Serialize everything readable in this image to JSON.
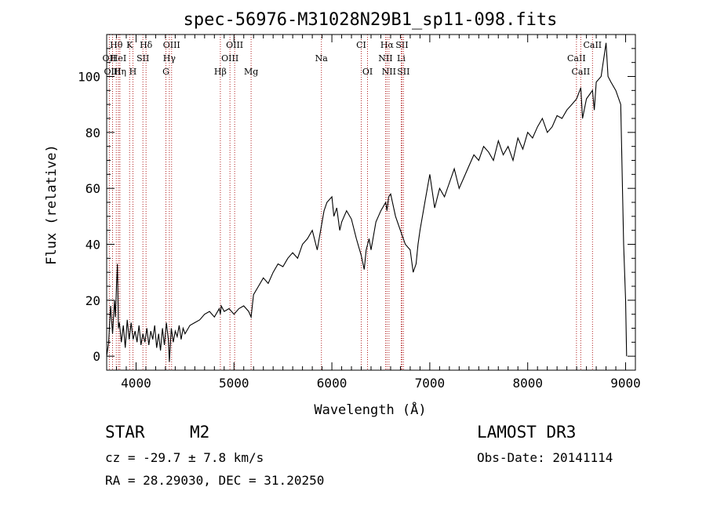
{
  "chart_data": {
    "type": "line",
    "title": "spec-56976-M31028N29B1_sp11-098.fits",
    "xlabel": "Wavelength (Å)",
    "ylabel": "Flux (relative)",
    "xlim": [
      3700,
      9100
    ],
    "ylim": [
      -5,
      115
    ],
    "xticks": [
      4000,
      5000,
      6000,
      7000,
      8000,
      9000
    ],
    "yticks": [
      0,
      20,
      40,
      60,
      80,
      100
    ],
    "series": [
      {
        "name": "flux",
        "x": [
          3700,
          3720,
          3740,
          3760,
          3780,
          3790,
          3800,
          3810,
          3820,
          3830,
          3850,
          3870,
          3890,
          3910,
          3930,
          3950,
          3970,
          3990,
          4010,
          4030,
          4050,
          4070,
          4090,
          4110,
          4130,
          4150,
          4170,
          4190,
          4210,
          4230,
          4250,
          4270,
          4290,
          4310,
          4330,
          4340,
          4360,
          4380,
          4400,
          4420,
          4440,
          4460,
          4480,
          4500,
          4550,
          4600,
          4650,
          4700,
          4750,
          4800,
          4850,
          4861,
          4870,
          4900,
          4950,
          5000,
          5050,
          5100,
          5150,
          5175,
          5200,
          5250,
          5300,
          5350,
          5400,
          5450,
          5500,
          5550,
          5600,
          5650,
          5700,
          5750,
          5800,
          5850,
          5880,
          5900,
          5920,
          5950,
          6000,
          6020,
          6050,
          6080,
          6100,
          6150,
          6200,
          6250,
          6300,
          6330,
          6350,
          6380,
          6400,
          6450,
          6500,
          6550,
          6563,
          6580,
          6600,
          6650,
          6700,
          6750,
          6800,
          6830,
          6860,
          6880,
          6900,
          6950,
          7000,
          7050,
          7100,
          7150,
          7200,
          7250,
          7300,
          7350,
          7400,
          7450,
          7500,
          7550,
          7600,
          7650,
          7700,
          7750,
          7800,
          7850,
          7900,
          7950,
          8000,
          8050,
          8100,
          8150,
          8200,
          8250,
          8300,
          8350,
          8400,
          8450,
          8500,
          8542,
          8560,
          8600,
          8662,
          8680,
          8700,
          8750,
          8800,
          8820,
          8850,
          8900,
          8950,
          8980,
          9000,
          9010
        ],
        "values": [
          0,
          5,
          18,
          8,
          20,
          14,
          25,
          33,
          10,
          12,
          5,
          11,
          3,
          13,
          6,
          12,
          6,
          9,
          5,
          11,
          4,
          8,
          5,
          10,
          4,
          9,
          6,
          11,
          3,
          8,
          2,
          10,
          4,
          12,
          6,
          -2,
          10,
          5,
          9,
          7,
          11,
          6,
          10,
          8,
          11,
          12,
          13,
          15,
          16,
          14,
          17,
          15,
          18,
          16,
          17,
          15,
          17,
          18,
          16,
          14,
          22,
          25,
          28,
          26,
          30,
          33,
          32,
          35,
          37,
          35,
          40,
          42,
          45,
          38,
          44,
          48,
          52,
          55,
          57,
          50,
          53,
          45,
          48,
          52,
          49,
          42,
          36,
          31,
          38,
          42,
          38,
          48,
          52,
          55,
          52,
          57,
          58,
          50,
          45,
          40,
          38,
          30,
          33,
          40,
          45,
          55,
          65,
          53,
          60,
          57,
          62,
          67,
          60,
          64,
          68,
          72,
          70,
          75,
          73,
          70,
          77,
          72,
          75,
          70,
          78,
          74,
          80,
          78,
          82,
          85,
          80,
          82,
          86,
          85,
          88,
          90,
          92,
          96,
          85,
          92,
          95,
          88,
          98,
          100,
          112,
          100,
          98,
          95,
          90,
          40,
          20,
          0
        ]
      }
    ],
    "lines": [
      {
        "label": "Hθ",
        "x": 3798,
        "row": 0
      },
      {
        "label": "OII",
        "x": 3727,
        "row": 1
      },
      {
        "label": "HeI",
        "x": 3820,
        "row": 1
      },
      {
        "label": "OIII",
        "x": 3760,
        "row": 2
      },
      {
        "label": "Hη",
        "x": 3835,
        "row": 2
      },
      {
        "label": "K",
        "x": 3934,
        "row": 0
      },
      {
        "label": "SII",
        "x": 4070,
        "row": 1
      },
      {
        "label": "H",
        "x": 3968,
        "row": 2
      },
      {
        "label": "Hδ",
        "x": 4102,
        "row": 0
      },
      {
        "label": "OIII",
        "x": 4363,
        "row": 0
      },
      {
        "label": "Hγ",
        "x": 4340,
        "row": 1
      },
      {
        "label": "G",
        "x": 4305,
        "row": 2
      },
      {
        "label": "OIII",
        "x": 5007,
        "row": 0
      },
      {
        "label": "OIII",
        "x": 4959,
        "row": 1
      },
      {
        "label": "Hβ",
        "x": 4861,
        "row": 2
      },
      {
        "label": "Mg",
        "x": 5175,
        "row": 2
      },
      {
        "label": "Na",
        "x": 5893,
        "row": 1
      },
      {
        "label": "CI",
        "x": 6300,
        "row": 0
      },
      {
        "label": "OI",
        "x": 6364,
        "row": 2
      },
      {
        "label": "Hα",
        "x": 6563,
        "row": 0
      },
      {
        "label": "SII",
        "x": 6716,
        "row": 0
      },
      {
        "label": "NII",
        "x": 6548,
        "row": 1
      },
      {
        "label": "Li",
        "x": 6708,
        "row": 1
      },
      {
        "label": "NII",
        "x": 6583,
        "row": 2
      },
      {
        "label": "SII",
        "x": 6731,
        "row": 2
      },
      {
        "label": "CaII",
        "x": 8662,
        "row": 0
      },
      {
        "label": "CaII",
        "x": 8498,
        "row": 1
      },
      {
        "label": "CaII",
        "x": 8542,
        "row": 2
      }
    ]
  },
  "info": {
    "object_class": "STAR",
    "subclass": "M2",
    "survey": "LAMOST DR3",
    "redshift": "cz = -29.7 ± 7.8 km/s",
    "obs_date": "Obs-Date: 20141114",
    "coords": "RA =  28.29030, DEC =  31.20250"
  }
}
